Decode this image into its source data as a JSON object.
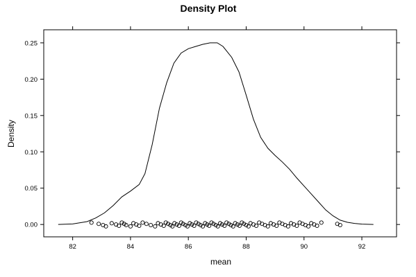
{
  "chart_data": {
    "type": "line",
    "title": "Density Plot",
    "xlabel": "mean",
    "ylabel": "Density",
    "xlim": [
      81.0,
      93.2
    ],
    "ylim": [
      -0.017,
      0.268
    ],
    "xticks": [
      82,
      84,
      86,
      88,
      90,
      92
    ],
    "yticks": [
      0.0,
      0.05,
      0.1,
      0.15,
      0.2,
      0.25
    ],
    "xtick_labels": [
      "82",
      "84",
      "86",
      "88",
      "90",
      "92"
    ],
    "ytick_labels": [
      "0.00",
      "0.05",
      "0.10",
      "0.15",
      "0.20",
      "0.25"
    ],
    "grid": false,
    "legend": "none",
    "density_curve": {
      "x": [
        81.5,
        82.0,
        82.5,
        82.8,
        83.1,
        83.4,
        83.7,
        84.0,
        84.3,
        84.5,
        84.75,
        85.0,
        85.25,
        85.5,
        85.75,
        86.0,
        86.25,
        86.5,
        86.75,
        87.0,
        87.2,
        87.5,
        87.75,
        88.0,
        88.25,
        88.5,
        88.75,
        89.0,
        89.25,
        89.5,
        89.75,
        90.0,
        90.25,
        90.5,
        90.75,
        91.0,
        91.25,
        91.5,
        91.75,
        92.0,
        92.4
      ],
      "y": [
        0.0,
        0.0008,
        0.004,
        0.009,
        0.016,
        0.026,
        0.038,
        0.046,
        0.055,
        0.07,
        0.11,
        0.16,
        0.195,
        0.222,
        0.236,
        0.242,
        0.245,
        0.248,
        0.25,
        0.25,
        0.245,
        0.23,
        0.21,
        0.178,
        0.145,
        0.12,
        0.105,
        0.095,
        0.086,
        0.076,
        0.064,
        0.053,
        0.042,
        0.031,
        0.02,
        0.012,
        0.006,
        0.003,
        0.0015,
        0.0005,
        0.0
      ]
    },
    "rug_points": {
      "y": 0.0,
      "x": [
        82.65,
        82.9,
        83.05,
        83.15,
        83.35,
        83.5,
        83.6,
        83.7,
        83.78,
        83.85,
        84.0,
        84.1,
        84.2,
        84.3,
        84.42,
        84.55,
        84.7,
        84.85,
        84.95,
        85.05,
        85.15,
        85.22,
        85.3,
        85.38,
        85.45,
        85.52,
        85.6,
        85.68,
        85.75,
        85.82,
        85.9,
        85.97,
        86.05,
        86.12,
        86.2,
        86.27,
        86.35,
        86.42,
        86.5,
        86.58,
        86.65,
        86.72,
        86.8,
        86.87,
        86.95,
        87.02,
        87.1,
        87.17,
        87.25,
        87.32,
        87.4,
        87.47,
        87.55,
        87.62,
        87.7,
        87.77,
        87.85,
        87.92,
        88.0,
        88.08,
        88.15,
        88.25,
        88.35,
        88.45,
        88.55,
        88.65,
        88.75,
        88.85,
        88.95,
        89.05,
        89.15,
        89.25,
        89.35,
        89.45,
        89.55,
        89.65,
        89.75,
        89.85,
        89.95,
        90.05,
        90.15,
        90.25,
        90.35,
        90.45,
        90.6,
        91.15,
        91.25
      ]
    }
  }
}
